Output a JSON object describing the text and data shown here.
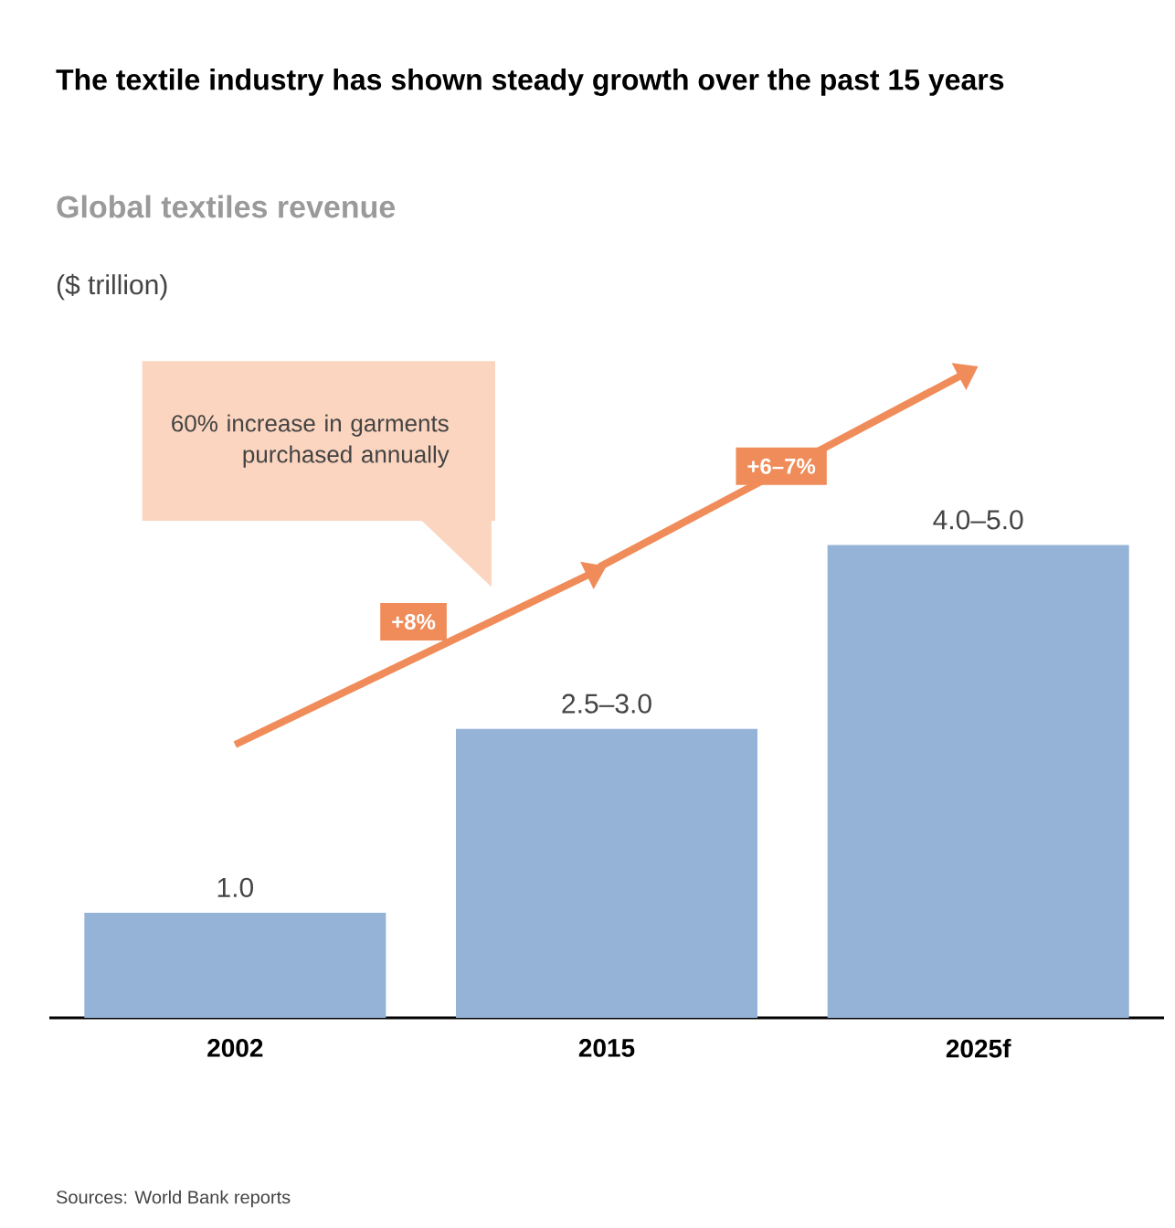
{
  "chart_data": {
    "type": "bar",
    "title": "The textile industry has shown steady growth over the past 15 years",
    "subtitle": "Global textiles revenue",
    "categories": [
      "2002",
      "2015",
      "2025f"
    ],
    "values": [
      1.0,
      2.75,
      4.5
    ],
    "value_labels": [
      "1.0",
      "2.5–3.0",
      "4.0–5.0"
    ],
    "color": "#95b3d7",
    "annotations": [
      "60% increase in garments purchased annually",
      "+8%",
      "+6–7%",
      "Sources: World Bank reports",
      "($ trillion)"
    ]
  }
}
